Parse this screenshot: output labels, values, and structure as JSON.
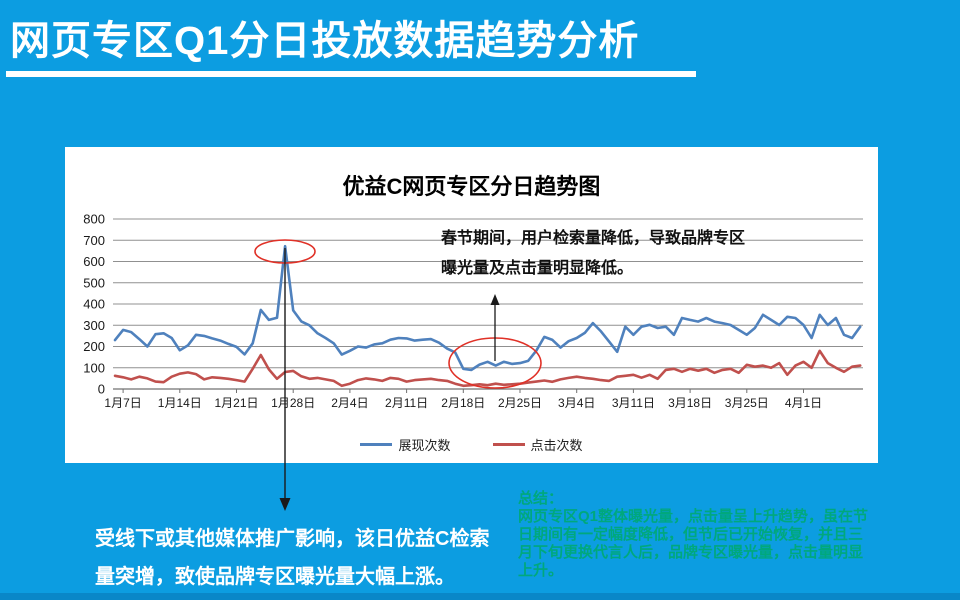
{
  "slide": {
    "title": "网页专区Q1分日投放数据趋势分析",
    "peak_callout": "受线下或其他媒体推广影响，该日优益C检索量突增，致使品牌专区曝光量大幅上涨。",
    "summary": {
      "heading": "总结：",
      "body": "网页专区Q1整体曝光量，点击量呈上升趋势，虽在节日期间有一定幅度降低，但节后已开始恢复，并且三月下旬更换代言人后，品牌专区曝光量，点击量明显上升。"
    },
    "colors": {
      "background": "#0C9DE1",
      "summary_text": "#00A87D",
      "highlight_ellipse": "#E03127"
    }
  },
  "chart_data": {
    "type": "line",
    "title": "优益C网页专区分日趋势图",
    "grid": true,
    "legend_position": "bottom",
    "ylim": [
      0,
      800
    ],
    "y_ticks": [
      0,
      100,
      200,
      300,
      400,
      500,
      600,
      700,
      800
    ],
    "x_tick_labels": [
      "1月7日",
      "1月14日",
      "1月21日",
      "1月28日",
      "2月4日",
      "2月11日",
      "2月18日",
      "2月25日",
      "3月4日",
      "3月11日",
      "3月18日",
      "3月25日",
      "4月1日"
    ],
    "annotation": {
      "line1": "春节期间，用户检索量降低，导致品牌专区",
      "line2": "曝光量及点击量明显降低。"
    },
    "series": [
      {
        "name": "展现次数",
        "color": "#4F81BD",
        "values": [
          230,
          278,
          268,
          235,
          200,
          258,
          262,
          240,
          182,
          205,
          255,
          250,
          238,
          228,
          212,
          198,
          163,
          215,
          372,
          325,
          335,
          672,
          370,
          318,
          300,
          262,
          240,
          215,
          162,
          180,
          200,
          195,
          210,
          215,
          232,
          240,
          238,
          228,
          232,
          235,
          218,
          190,
          172,
          95,
          90,
          115,
          128,
          110,
          128,
          118,
          122,
          132,
          180,
          245,
          231,
          195,
          225,
          240,
          264,
          310,
          271,
          223,
          175,
          293,
          255,
          293,
          302,
          287,
          293,
          255,
          334,
          325,
          317,
          334,
          317,
          310,
          301,
          278,
          255,
          287,
          349,
          325,
          301,
          340,
          334,
          301,
          240,
          349,
          301,
          334,
          255,
          240,
          293
        ]
      },
      {
        "name": "点击次数",
        "color": "#C0504D",
        "values": [
          62,
          55,
          45,
          58,
          50,
          35,
          32,
          58,
          72,
          78,
          70,
          45,
          55,
          52,
          48,
          42,
          35,
          95,
          160,
          92,
          48,
          80,
          85,
          60,
          48,
          52,
          45,
          38,
          15,
          25,
          42,
          50,
          45,
          38,
          52,
          48,
          35,
          42,
          45,
          48,
          42,
          38,
          25,
          15,
          18,
          22,
          18,
          25,
          20,
          22,
          25,
          30,
          35,
          40,
          34,
          45,
          52,
          58,
          52,
          48,
          42,
          38,
          58,
          62,
          67,
          53,
          67,
          48,
          90,
          95,
          81,
          95,
          86,
          95,
          76,
          90,
          95,
          76,
          114,
          105,
          110,
          100,
          122,
          67,
          110,
          128,
          100,
          180,
          122,
          100,
          81,
          105,
          110
        ]
      }
    ]
  }
}
